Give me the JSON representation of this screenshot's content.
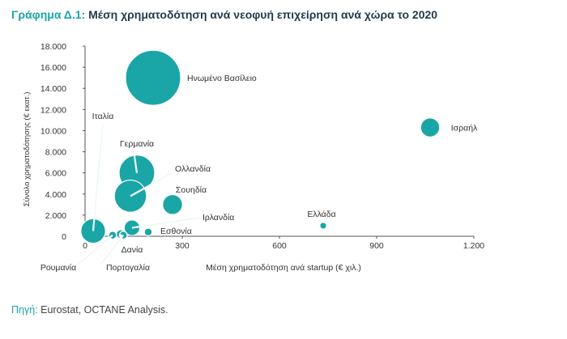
{
  "title_prefix": "Γράφημα Δ.1:",
  "title": "Μέση χρηματοδότηση ανά νεοφυή επιχείρηση ανά χώρα το 2020",
  "source_label": "Πηγή:",
  "source_text": "Eurostat, OCTANE Analysis.",
  "colors": {
    "bubble": "#1aa6a6",
    "title_accent": "#1aa6a6",
    "title": "#1f3b4d",
    "axis": "#555555"
  },
  "chart_data": {
    "type": "scatter",
    "variant": "bubble",
    "xlabel": "Μέση χρηματοδότηση ανά startup (€ χιλ.)",
    "ylabel": "Σύνολο χρηματοδότησης (€ εκατ.)",
    "xlim": [
      0,
      1200
    ],
    "ylim": [
      0,
      18000
    ],
    "xticks": [
      0,
      300,
      600,
      900,
      1200
    ],
    "xtick_labels": [
      "0",
      "300",
      "600",
      "900",
      "1.200"
    ],
    "yticks": [
      0,
      2000,
      4000,
      6000,
      8000,
      10000,
      12000,
      14000,
      16000,
      18000
    ],
    "ytick_labels": [
      "0",
      "2.000",
      "4.000",
      "6.000",
      "8.000",
      "10.000",
      "12.000",
      "14.000",
      "16.000",
      "18.000"
    ],
    "grid": false,
    "points": [
      {
        "label": "Ηνωμένο Βασίλειο",
        "x": 210,
        "y": 15000,
        "size": 100
      },
      {
        "label": "Ισραήλ",
        "x": 1065,
        "y": 10300,
        "size": 12
      },
      {
        "label": "Ιταλία",
        "x": 25,
        "y": 500,
        "size": 20
      },
      {
        "label": "Γερμανία",
        "x": 160,
        "y": 6000,
        "size": 42
      },
      {
        "label": "Ολλανδία",
        "x": 140,
        "y": 3800,
        "size": 34
      },
      {
        "label": "Σουηδία",
        "x": 270,
        "y": 3000,
        "size": 13
      },
      {
        "label": "Ιρλανδία",
        "x": 145,
        "y": 800,
        "size": 8
      },
      {
        "label": "Ελλάδα",
        "x": 735,
        "y": 1000,
        "size": 1.5
      },
      {
        "label": "Εσθονία",
        "x": 195,
        "y": 400,
        "size": 2
      },
      {
        "label": "Δανία",
        "x": 110,
        "y": 200,
        "size": 2.5
      },
      {
        "label": "Ρουμανία",
        "x": 85,
        "y": 100,
        "size": 2
      },
      {
        "label": "Πορτογαλία",
        "x": 118,
        "y": 100,
        "size": 2
      }
    ]
  }
}
